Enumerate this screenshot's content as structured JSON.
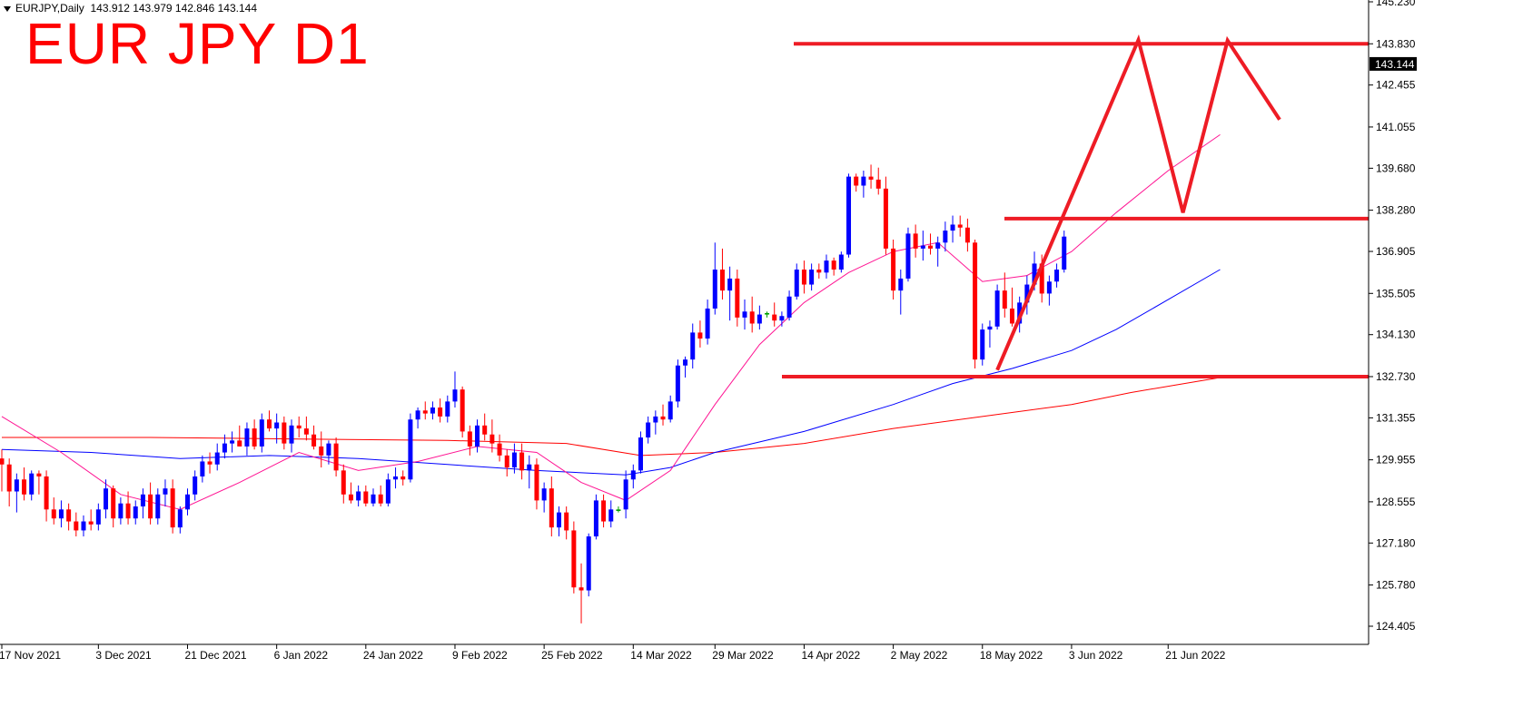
{
  "header": {
    "symbol_timeframe": "EURJPY,Daily",
    "ohlc": "143.912 143.979 142.846 143.144"
  },
  "overlay_title": "EUR JPY D1",
  "price_axis": {
    "current_price_label": "143.144"
  },
  "colors": {
    "bull_candle": "#0000ff",
    "bear_candle": "#ff0000",
    "doji_candle": "#00a000",
    "ma_fast": "#ff1493",
    "ma_mid": "#0000ff",
    "ma_slow": "#ff0000",
    "drawing": "#ee1c25",
    "current_price_box": "#000000"
  },
  "chart_data": {
    "type": "candlestick",
    "symbol": "EURJPY",
    "timeframe": "Daily",
    "ylim": [
      124.0,
      145.3
    ],
    "y_ticks": [
      "145.230",
      "143.830",
      "142.455",
      "141.055",
      "139.680",
      "138.280",
      "136.905",
      "135.505",
      "134.130",
      "132.730",
      "131.355",
      "129.955",
      "128.555",
      "127.180",
      "125.780",
      "124.405"
    ],
    "x_ticks": [
      "17 Nov 2021",
      "3 Dec 2021",
      "21 Dec 2021",
      "6 Jan 2022",
      "24 Jan 2022",
      "9 Feb 2022",
      "25 Feb 2022",
      "14 Mar 2022",
      "29 Mar 2022",
      "14 Apr 2022",
      "2 May 2022",
      "18 May 2022",
      "3 Jun 2022",
      "21 Jun 2022"
    ],
    "x_tick_index": [
      0,
      13,
      25,
      37,
      49,
      61,
      73,
      85,
      96,
      108,
      120,
      132,
      144,
      157
    ],
    "candles": [
      [
        130.0,
        130.3,
        128.9,
        129.8
      ],
      [
        129.8,
        130.0,
        128.4,
        128.9
      ],
      [
        128.9,
        129.5,
        128.2,
        129.3
      ],
      [
        129.3,
        129.7,
        128.6,
        128.8
      ],
      [
        128.8,
        129.6,
        128.6,
        129.5
      ],
      [
        129.5,
        129.6,
        128.8,
        129.4
      ],
      [
        129.4,
        129.6,
        127.9,
        128.3
      ],
      [
        128.3,
        128.7,
        127.8,
        128.0
      ],
      [
        128.0,
        128.6,
        127.7,
        128.3
      ],
      [
        128.3,
        128.5,
        127.6,
        127.9
      ],
      [
        127.9,
        128.2,
        127.4,
        127.6
      ],
      [
        127.6,
        128.1,
        127.4,
        127.9
      ],
      [
        127.9,
        128.3,
        127.6,
        127.8
      ],
      [
        127.8,
        128.5,
        127.6,
        128.3
      ],
      [
        128.3,
        129.3,
        128.0,
        129.0
      ],
      [
        129.0,
        129.1,
        127.7,
        128.0
      ],
      [
        128.0,
        128.7,
        127.8,
        128.5
      ],
      [
        128.5,
        128.9,
        127.8,
        128.0
      ],
      [
        128.0,
        128.6,
        127.8,
        128.4
      ],
      [
        128.4,
        129.0,
        128.0,
        128.8
      ],
      [
        128.8,
        129.2,
        127.8,
        128.0
      ],
      [
        128.0,
        129.0,
        127.8,
        128.8
      ],
      [
        128.8,
        129.3,
        128.4,
        129.0
      ],
      [
        129.0,
        129.3,
        127.5,
        127.7
      ],
      [
        127.7,
        128.4,
        127.5,
        128.3
      ],
      [
        128.3,
        129.0,
        128.1,
        128.8
      ],
      [
        128.8,
        129.6,
        128.6,
        129.4
      ],
      [
        129.4,
        130.1,
        129.2,
        129.9
      ],
      [
        129.9,
        130.2,
        129.5,
        129.8
      ],
      [
        129.8,
        130.5,
        129.6,
        130.2
      ],
      [
        130.2,
        130.8,
        130.0,
        130.5
      ],
      [
        130.5,
        130.9,
        130.2,
        130.6
      ],
      [
        130.6,
        131.1,
        130.4,
        130.4
      ],
      [
        130.4,
        131.2,
        130.1,
        131.0
      ],
      [
        131.0,
        131.3,
        130.3,
        130.4
      ],
      [
        130.4,
        131.5,
        130.2,
        131.3
      ],
      [
        131.3,
        131.6,
        130.9,
        131.0
      ],
      [
        131.0,
        131.5,
        130.5,
        131.2
      ],
      [
        131.2,
        131.4,
        130.3,
        130.5
      ],
      [
        130.5,
        131.3,
        130.2,
        131.1
      ],
      [
        131.1,
        131.4,
        130.7,
        131.0
      ],
      [
        131.0,
        131.4,
        130.6,
        130.8
      ],
      [
        130.8,
        131.1,
        130.3,
        130.4
      ],
      [
        130.4,
        130.9,
        129.7,
        130.1
      ],
      [
        130.1,
        130.6,
        129.8,
        130.5
      ],
      [
        130.5,
        130.7,
        129.4,
        129.6
      ],
      [
        129.6,
        129.8,
        128.5,
        128.8
      ],
      [
        128.8,
        129.2,
        128.5,
        128.6
      ],
      [
        128.6,
        129.1,
        128.4,
        128.9
      ],
      [
        128.9,
        129.1,
        128.4,
        128.5
      ],
      [
        128.5,
        129.0,
        128.4,
        128.8
      ],
      [
        128.8,
        129.1,
        128.4,
        128.5
      ],
      [
        128.5,
        129.5,
        128.4,
        129.3
      ],
      [
        129.3,
        129.7,
        129.0,
        129.4
      ],
      [
        129.4,
        129.6,
        129.1,
        129.3
      ],
      [
        129.3,
        131.5,
        129.2,
        131.3
      ],
      [
        131.3,
        131.7,
        131.0,
        131.6
      ],
      [
        131.6,
        131.9,
        131.3,
        131.5
      ],
      [
        131.5,
        131.9,
        131.3,
        131.7
      ],
      [
        131.7,
        132.0,
        131.2,
        131.4
      ],
      [
        131.4,
        132.1,
        131.2,
        131.9
      ],
      [
        131.9,
        132.9,
        131.7,
        132.3
      ],
      [
        132.3,
        132.4,
        130.7,
        130.9
      ],
      [
        130.9,
        131.1,
        130.1,
        130.4
      ],
      [
        130.4,
        131.3,
        130.2,
        131.1
      ],
      [
        131.1,
        131.5,
        130.6,
        130.8
      ],
      [
        130.8,
        131.3,
        130.2,
        130.5
      ],
      [
        130.5,
        130.8,
        129.9,
        130.1
      ],
      [
        130.1,
        130.3,
        129.4,
        129.7
      ],
      [
        129.7,
        130.5,
        129.5,
        130.2
      ],
      [
        130.2,
        130.5,
        129.3,
        129.6
      ],
      [
        129.6,
        130.1,
        129.0,
        129.8
      ],
      [
        129.8,
        130.0,
        128.3,
        128.6
      ],
      [
        128.6,
        129.2,
        128.2,
        129.0
      ],
      [
        129.0,
        129.4,
        127.4,
        127.7
      ],
      [
        127.7,
        128.4,
        127.4,
        128.2
      ],
      [
        128.2,
        128.4,
        127.3,
        127.6
      ],
      [
        127.6,
        127.9,
        125.5,
        125.7
      ],
      [
        125.7,
        126.5,
        124.5,
        125.6
      ],
      [
        125.6,
        127.5,
        125.4,
        127.4
      ],
      [
        127.4,
        128.8,
        127.3,
        128.6
      ],
      [
        128.6,
        128.8,
        127.7,
        127.9
      ],
      [
        127.9,
        128.6,
        127.7,
        128.3
      ],
      [
        128.3,
        128.4,
        128.2,
        128.25
      ],
      [
        128.3,
        129.6,
        128.0,
        129.3
      ],
      [
        129.3,
        129.8,
        129.0,
        129.6
      ],
      [
        129.6,
        130.9,
        129.5,
        130.7
      ],
      [
        130.7,
        131.4,
        130.5,
        131.2
      ],
      [
        131.2,
        131.6,
        130.8,
        131.4
      ],
      [
        131.4,
        131.8,
        131.1,
        131.3
      ],
      [
        131.3,
        132.1,
        131.2,
        131.9
      ],
      [
        131.9,
        133.3,
        131.7,
        133.1
      ],
      [
        133.1,
        133.4,
        132.7,
        133.3
      ],
      [
        133.3,
        134.5,
        133.0,
        134.2
      ],
      [
        134.2,
        134.6,
        133.7,
        134.0
      ],
      [
        134.0,
        135.3,
        133.8,
        135.0
      ],
      [
        135.0,
        137.2,
        134.8,
        136.3
      ],
      [
        136.3,
        137.0,
        135.3,
        135.6
      ],
      [
        135.6,
        136.4,
        134.6,
        136.0
      ],
      [
        136.0,
        136.3,
        134.4,
        134.7
      ],
      [
        134.7,
        135.3,
        134.3,
        134.9
      ],
      [
        134.9,
        135.4,
        134.2,
        134.5
      ],
      [
        134.5,
        135.1,
        134.3,
        134.8
      ],
      [
        134.8,
        134.9,
        134.7,
        134.85
      ],
      [
        134.8,
        135.2,
        134.4,
        134.6
      ],
      [
        134.6,
        134.9,
        134.4,
        134.75
      ],
      [
        134.7,
        135.6,
        134.6,
        135.4
      ],
      [
        135.4,
        136.5,
        135.3,
        136.3
      ],
      [
        136.3,
        136.6,
        135.5,
        135.8
      ],
      [
        135.8,
        136.5,
        135.6,
        136.3
      ],
      [
        136.3,
        136.5,
        136.0,
        136.2
      ],
      [
        136.2,
        136.8,
        136.0,
        136.6
      ],
      [
        136.6,
        136.7,
        136.1,
        136.3
      ],
      [
        136.3,
        136.9,
        136.2,
        136.8
      ],
      [
        136.8,
        139.5,
        136.7,
        139.4
      ],
      [
        139.4,
        139.5,
        138.9,
        139.1
      ],
      [
        139.1,
        139.6,
        138.7,
        139.4
      ],
      [
        139.4,
        139.8,
        139.0,
        139.3
      ],
      [
        139.3,
        139.7,
        138.8,
        139.0
      ],
      [
        139.0,
        139.4,
        136.8,
        137.0
      ],
      [
        137.0,
        137.3,
        135.3,
        135.6
      ],
      [
        135.6,
        136.3,
        134.8,
        136.0
      ],
      [
        136.0,
        137.7,
        135.9,
        137.5
      ],
      [
        137.5,
        137.8,
        136.7,
        137.0
      ],
      [
        137.0,
        137.6,
        136.6,
        137.1
      ],
      [
        137.1,
        137.5,
        136.8,
        137.0
      ],
      [
        137.0,
        137.4,
        136.4,
        137.2
      ],
      [
        137.2,
        137.9,
        136.9,
        137.6
      ],
      [
        137.6,
        138.1,
        137.2,
        137.8
      ],
      [
        137.8,
        138.1,
        137.4,
        137.7
      ],
      [
        137.7,
        138.0,
        136.9,
        137.2
      ],
      [
        137.2,
        137.3,
        133.0,
        133.3
      ],
      [
        133.3,
        134.5,
        133.1,
        134.3
      ],
      [
        134.3,
        134.6,
        133.7,
        134.4
      ],
      [
        134.4,
        135.8,
        134.3,
        135.6
      ],
      [
        135.6,
        136.2,
        134.7,
        135.0
      ],
      [
        135.0,
        135.7,
        134.4,
        134.5
      ],
      [
        134.5,
        135.4,
        134.2,
        135.2
      ],
      [
        135.2,
        136.1,
        134.8,
        135.8
      ],
      [
        135.8,
        136.9,
        135.6,
        136.5
      ],
      [
        136.5,
        136.8,
        135.2,
        135.5
      ],
      [
        135.5,
        136.1,
        135.1,
        135.9
      ],
      [
        135.9,
        136.5,
        135.7,
        136.3
      ],
      [
        136.3,
        137.6,
        136.2,
        137.4
      ]
    ],
    "ma_fast": [
      [
        0,
        131.4
      ],
      [
        8,
        130.2
      ],
      [
        16,
        128.8
      ],
      [
        24,
        128.3
      ],
      [
        32,
        129.2
      ],
      [
        40,
        130.2
      ],
      [
        48,
        129.6
      ],
      [
        56,
        129.9
      ],
      [
        64,
        130.4
      ],
      [
        72,
        130.2
      ],
      [
        78,
        129.2
      ],
      [
        84,
        128.6
      ],
      [
        90,
        129.6
      ],
      [
        96,
        131.8
      ],
      [
        102,
        133.8
      ],
      [
        108,
        135.2
      ],
      [
        114,
        136.2
      ],
      [
        120,
        136.9
      ],
      [
        126,
        137.2
      ],
      [
        132,
        135.9
      ],
      [
        138,
        136.1
      ],
      [
        144,
        136.9
      ],
      [
        150,
        138.2
      ],
      [
        157,
        139.6
      ],
      [
        164,
        140.8
      ]
    ],
    "ma_mid": [
      [
        0,
        130.3
      ],
      [
        12,
        130.2
      ],
      [
        24,
        130.0
      ],
      [
        36,
        130.1
      ],
      [
        48,
        130.0
      ],
      [
        60,
        129.8
      ],
      [
        72,
        129.6
      ],
      [
        84,
        129.45
      ],
      [
        90,
        129.7
      ],
      [
        96,
        130.2
      ],
      [
        108,
        130.9
      ],
      [
        120,
        131.8
      ],
      [
        128,
        132.5
      ],
      [
        136,
        133.0
      ],
      [
        144,
        133.6
      ],
      [
        150,
        134.3
      ],
      [
        157,
        135.3
      ],
      [
        164,
        136.3
      ]
    ],
    "ma_slow": [
      [
        0,
        130.7
      ],
      [
        20,
        130.7
      ],
      [
        40,
        130.65
      ],
      [
        60,
        130.6
      ],
      [
        76,
        130.5
      ],
      [
        86,
        130.1
      ],
      [
        96,
        130.2
      ],
      [
        108,
        130.5
      ],
      [
        120,
        131.0
      ],
      [
        132,
        131.4
      ],
      [
        144,
        131.8
      ],
      [
        152,
        132.2
      ],
      [
        158,
        132.45
      ],
      [
        164,
        132.7
      ]
    ],
    "drawings": {
      "horizontal_levels": [
        143.83,
        138.0,
        132.73
      ],
      "pattern_points": [
        [
          134,
          132.95
        ],
        [
          153,
          143.96
        ],
        [
          156,
          141.1
        ],
        [
          159,
          138.2
        ],
        [
          165,
          143.94
        ],
        [
          172,
          141.3
        ]
      ]
    }
  }
}
